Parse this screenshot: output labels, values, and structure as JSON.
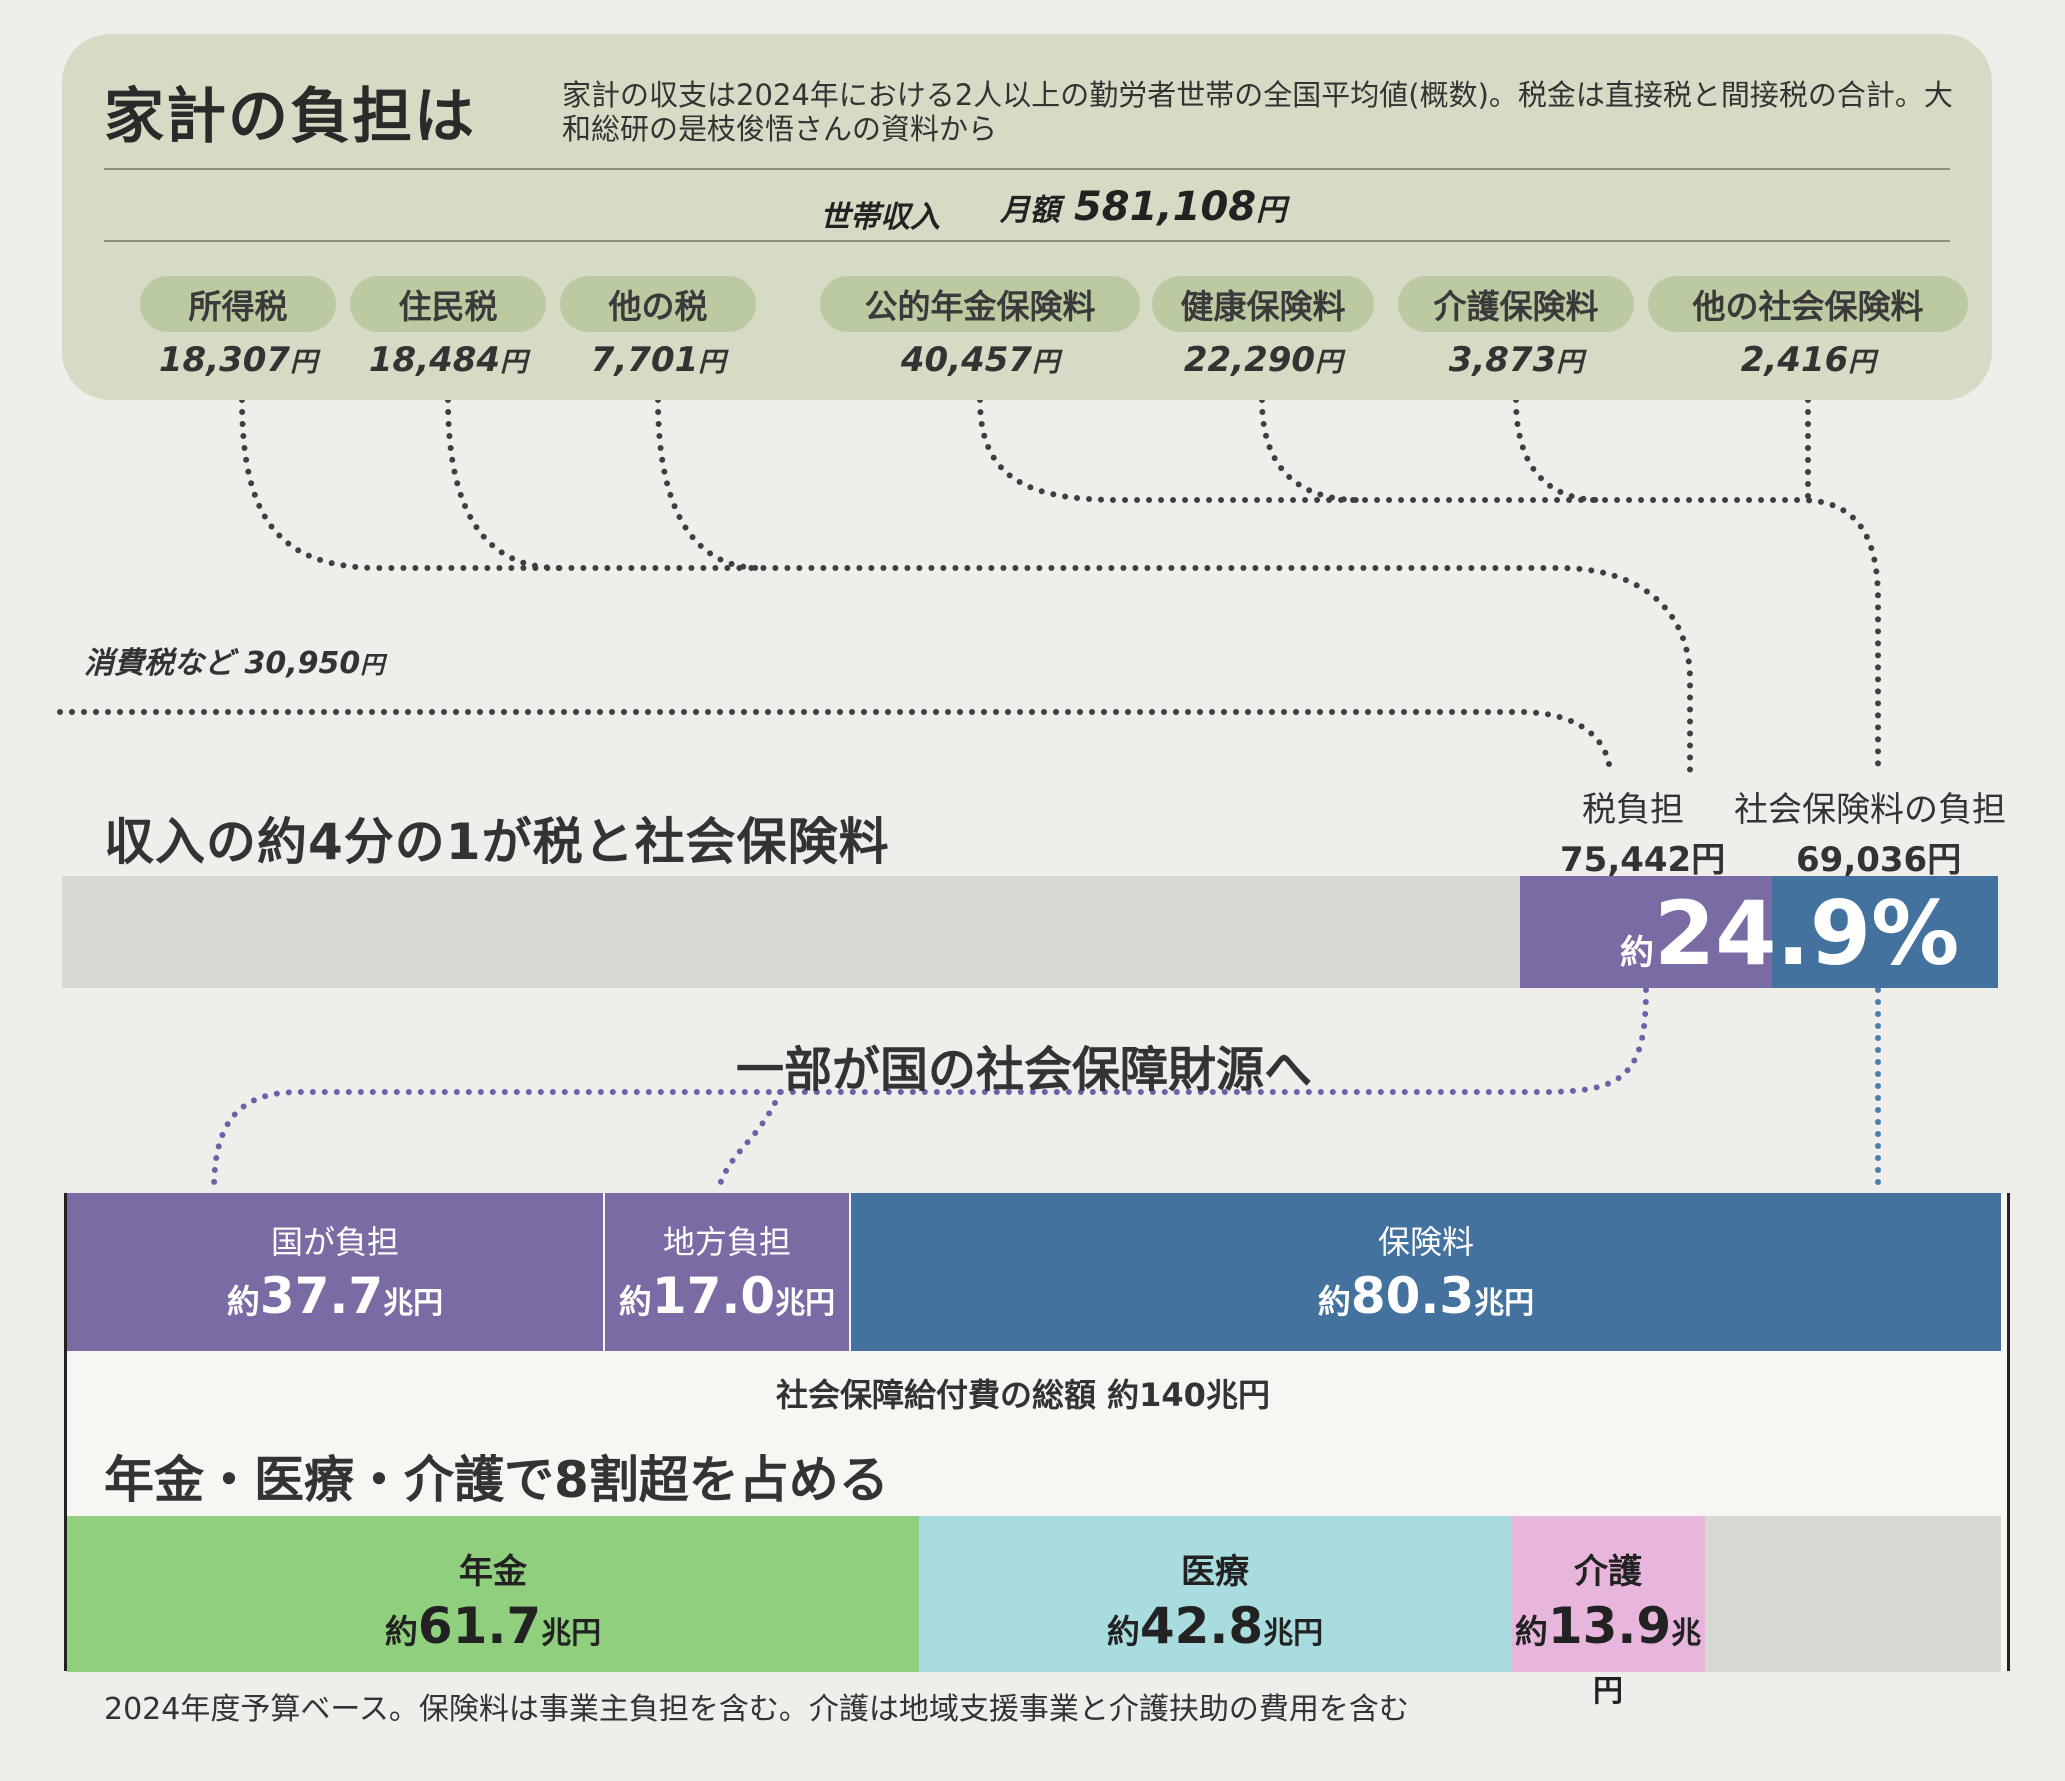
{
  "header": {
    "title": "家計の負担は",
    "description": "家計の収支は2024年における2人以上の勤労者世帯の全国平均値(概数)。税金は直接税と間接税の合計。大和総研の是枝俊悟さんの資料から"
  },
  "income": {
    "label": "世帯収入",
    "monthly_prefix": "月額",
    "amount": "581,108",
    "unit": "円"
  },
  "items": [
    {
      "label": "所得税",
      "amount": "18,307",
      "unit": "円"
    },
    {
      "label": "住民税",
      "amount": "18,484",
      "unit": "円"
    },
    {
      "label": "他の税",
      "amount": "7,701",
      "unit": "円"
    },
    {
      "label": "公的年金保険料",
      "amount": "40,457",
      "unit": "円"
    },
    {
      "label": "健康保険料",
      "amount": "22,290",
      "unit": "円"
    },
    {
      "label": "介護保険料",
      "amount": "3,873",
      "unit": "円"
    },
    {
      "label": "他の社会保険料",
      "amount": "2,416",
      "unit": "円"
    }
  ],
  "consumption_tax": {
    "label": "消費税など",
    "amount": "30,950",
    "unit": "円"
  },
  "burden": {
    "headline": "収入の約4分の1が税と社会保険料",
    "tax_label": "税負担",
    "tax_amount": "75,442円",
    "insurance_label": "社会保険料の負担",
    "insurance_amount": "69,036円",
    "ratio_prefix": "約",
    "ratio": "24.9%",
    "ratio_value": 0.249
  },
  "flow": {
    "headline": "一部が国の社会保障財源へ"
  },
  "funding": {
    "segments": [
      {
        "label": "国が負担",
        "prefix": "約",
        "value": "37.7",
        "unit": "兆円",
        "color": "#7b6ba4"
      },
      {
        "label": "地方負担",
        "prefix": "約",
        "value": "17.0",
        "unit": "兆円",
        "color": "#7b6ba4"
      },
      {
        "label": "保険料",
        "prefix": "約",
        "value": "80.3",
        "unit": "兆円",
        "color": "#44729e"
      }
    ],
    "total": "社会保障給付費の総額 約140兆円"
  },
  "benefits": {
    "headline": "年金・医療・介護で8割超を占める",
    "segments": [
      {
        "label": "年金",
        "prefix": "約",
        "value": "61.7",
        "unit": "兆円",
        "color": "#8fcf7e"
      },
      {
        "label": "医療",
        "prefix": "約",
        "value": "42.8",
        "unit": "兆円",
        "color": "#a8dcdf"
      },
      {
        "label": "介護",
        "prefix": "約",
        "value": "13.9",
        "unit": "兆円",
        "color": "#e8b6dc"
      }
    ],
    "other_color": "#d8d8d4"
  },
  "footnote": "2024年度予算ベース。保険料は事業主負担を含む。介護は地域支援事業と介護扶助の費用を含む"
}
